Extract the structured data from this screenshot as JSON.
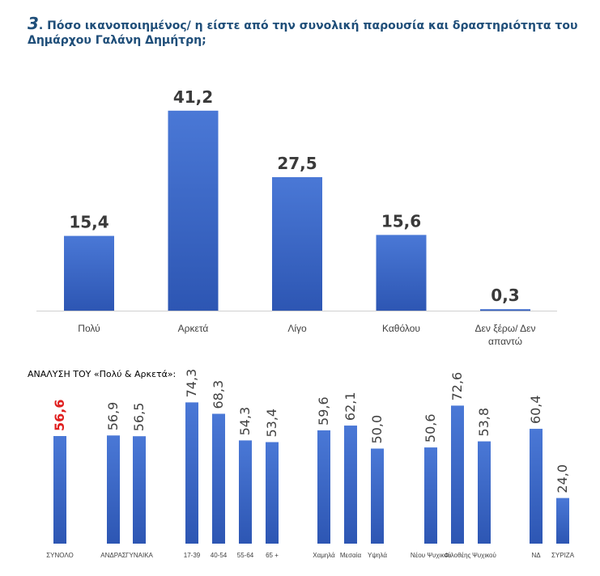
{
  "title": {
    "number": "3",
    "text": ". Πόσο ικανοποιημένος/ η είστε από την συνολική παρουσία και δραστηριότητα του Δημάρχου Γαλάνη Δημήτρη;"
  },
  "subheading": "ΑΝΑΛΥΣΗ ΤΟΥ «Πολύ & Αρκετά»:",
  "colors": {
    "bar_top": "#4a78d6",
    "bar_bottom": "#2d56b3",
    "title": "#1f4e79",
    "highlight": "#e02020"
  },
  "chart_data": [
    {
      "type": "bar",
      "categories": [
        "Πολύ",
        "Αρκετά",
        "Λίγο",
        "Καθόλου",
        "Δεν ξέρω/ Δεν απαντώ"
      ],
      "values": [
        15.4,
        41.2,
        27.5,
        15.6,
        0.3
      ],
      "value_labels": [
        "15,4",
        "41,2",
        "27,5",
        "15,6",
        "0,3"
      ],
      "ylim": [
        0,
        45
      ],
      "grid": false,
      "legend": "none"
    },
    {
      "type": "bar",
      "categories": [
        "ΣΥΝΟΛΟ",
        "ΑΝΔΡΑΣ",
        "ΓΥΝΑΙΚΑ",
        "17-39",
        "40-54",
        "55-64",
        "65 +",
        "Χαμηλά",
        "Μεσαία",
        "Υψηλά",
        "Νέου Ψυχικού",
        "Φιλοθέης",
        "Ψυχικού",
        "ΝΔ",
        "ΣΥΡΙΖΑ"
      ],
      "groups": [
        [
          "ΣΥΝΟΛΟ"
        ],
        [
          "ΑΝΔΡΑΣ",
          "ΓΥΝΑΙΚΑ"
        ],
        [
          "17-39",
          "40-54",
          "55-64",
          "65 +"
        ],
        [
          "Χαμηλά",
          "Μεσαία",
          "Υψηλά"
        ],
        [
          "Νέου Ψυχικού",
          "Φιλοθέης",
          "Ψυχικού"
        ],
        [
          "ΝΔ",
          "ΣΥΡΙΖΑ"
        ]
      ],
      "values": [
        56.6,
        56.9,
        56.5,
        74.3,
        68.3,
        54.3,
        53.4,
        59.6,
        62.1,
        50.0,
        50.6,
        72.6,
        53.8,
        60.4,
        24.0
      ],
      "value_labels": [
        "56,6",
        "56,9",
        "56,5",
        "74,3",
        "68,3",
        "54,3",
        "53,4",
        "59,6",
        "62,1",
        "50,0",
        "50,6",
        "72,6",
        "53,8",
        "60,4",
        "24,0"
      ],
      "highlighted": [
        "ΣΥΝΟΛΟ"
      ],
      "ylim": [
        0,
        80
      ],
      "grid": false,
      "legend": "none"
    }
  ]
}
